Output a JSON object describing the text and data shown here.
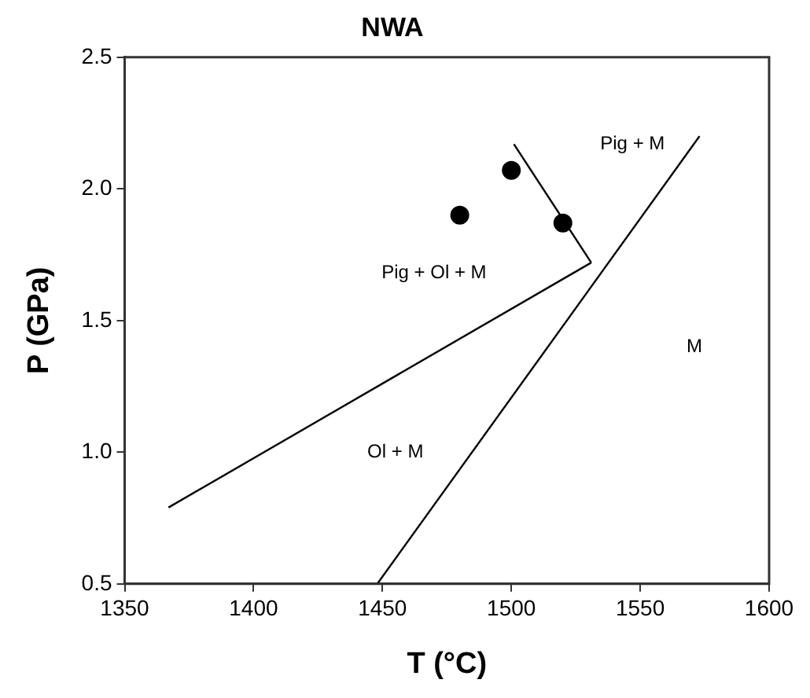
{
  "chart_data": {
    "type": "scatter",
    "title": "NWA",
    "xlabel": "T (°C)",
    "ylabel": "P (GPa)",
    "xlim": [
      1350,
      1600
    ],
    "xticks": [
      1350,
      1400,
      1450,
      1500,
      1550,
      1600
    ],
    "ylim": [
      0.5,
      2.5
    ],
    "yticks": [
      {
        "value": 0.5,
        "label": "0.5"
      },
      {
        "value": 1,
        "label": "1.0"
      },
      {
        "value": 1.5,
        "label": "1.5"
      },
      {
        "value": 2,
        "label": "2.0"
      },
      {
        "value": 2.5,
        "label": "2.5"
      }
    ],
    "grid": false,
    "legend": false,
    "marker": "circle",
    "series": [
      {
        "color": "#000000",
        "x": [
          1480,
          1500,
          1520
        ],
        "values": [
          1.9,
          2.07,
          1.87
        ]
      },
      {
        "type": "line",
        "color": "#000000",
        "marker": "none",
        "x": [
          1367,
          1531
        ],
        "values": [
          0.79,
          1.72
        ]
      },
      {
        "type": "line",
        "color": "#000000",
        "marker": "none",
        "x": [
          1448,
          1573
        ],
        "values": [
          0.5,
          2.2
        ]
      },
      {
        "type": "line",
        "color": "#000000",
        "marker": "none",
        "x": [
          1501,
          1531
        ],
        "values": [
          2.17,
          1.72
        ]
      }
    ],
    "annotations": [
      "Pig + M",
      "Pig + Ol + M",
      "M",
      "Ol + M"
    ]
  }
}
